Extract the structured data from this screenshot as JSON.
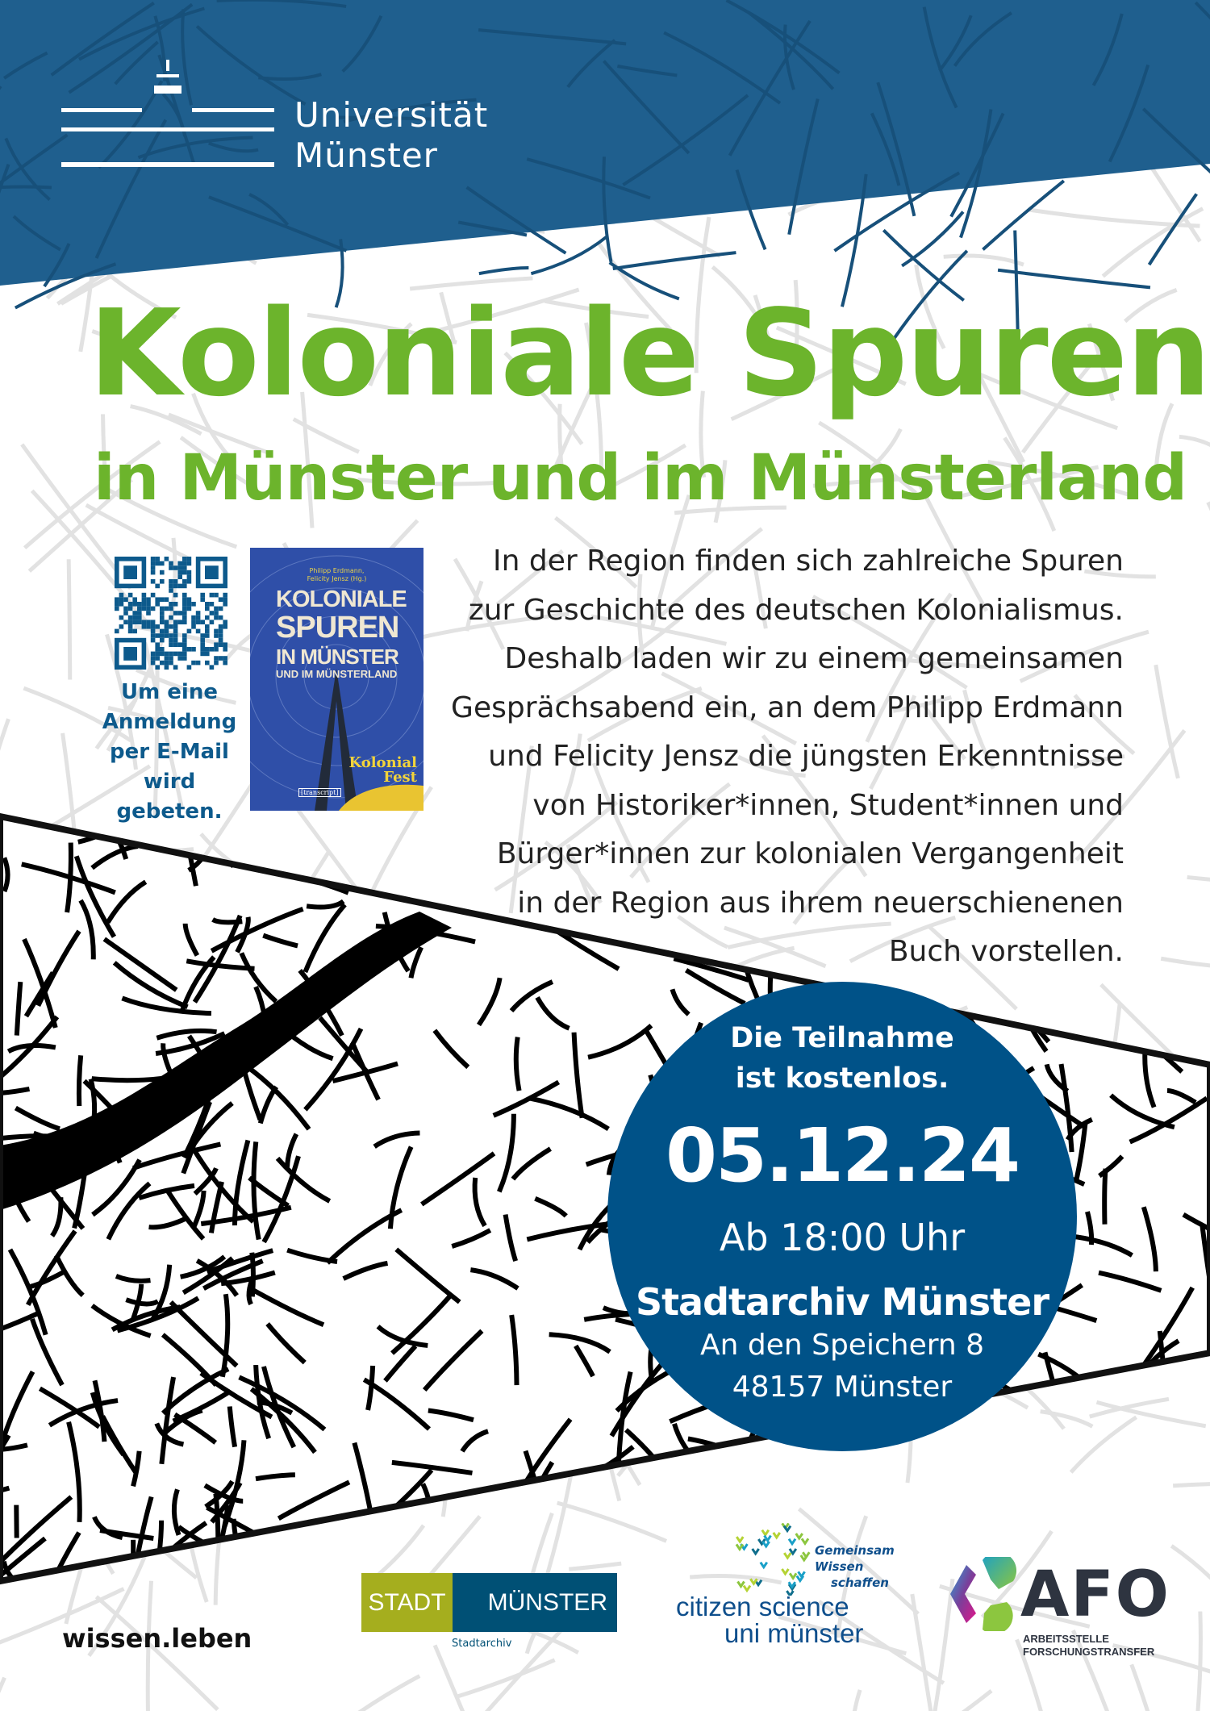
{
  "colors": {
    "header_blue": "#1f5f8e",
    "circle_blue": "#005288",
    "title_green": "#6cb42c",
    "text_dark": "#222222"
  },
  "header": {
    "university_line1": "Universität",
    "university_line2": "Münster",
    "logo_icon": "university-logo-icon"
  },
  "title": "Koloniale Spuren",
  "subtitle": "in Münster und im Münsterland",
  "registration": {
    "qr_icon": "qr-code-icon",
    "text": "Um eine Anmeldung per E-Mail wird gebeten."
  },
  "book": {
    "authors_line1": "Philipp Erdmann,",
    "authors_line2": "Felicity Jensz (Hg.)",
    "title_line1": "KOLONIALE",
    "title_line2": "SPUREN",
    "title_line3": "IN MÜNSTER",
    "title_line4": "UND IM MÜNSTERLAND",
    "series_line1": "Kolonial",
    "series_line2": "Fest",
    "publisher": "[transcript]"
  },
  "description_lines": [
    "In der Region finden sich zahlreiche Spuren",
    "zur Geschichte des deutschen Kolonialismus.",
    "Deshalb laden wir zu einem gemeinsamen",
    "Gesprächsabend ein, an dem Philipp Erdmann",
    "und Felicity Jensz die jüngsten Erkenntnisse",
    "von Historiker*innen, Student*innen und",
    "Bürger*innen zur kolonialen Vergangenheit",
    "in der Region aus ihrem neuerschienenen",
    "Buch vorstellen."
  ],
  "event": {
    "free_line1": "Die Teilnahme",
    "free_line2": "ist kostenlos.",
    "date": "05.12.24",
    "time": "Ab 18:00 Uhr",
    "venue": "Stadtarchiv Münster",
    "street": "An den Speichern 8",
    "city": "48157 Münster"
  },
  "footer": {
    "slogan": "wissen.leben",
    "stadt_logo": {
      "left": "STADT",
      "right": "MÜNSTER",
      "sub": "Stadtarchiv"
    },
    "citizen_science": {
      "line1": "citizen science",
      "line2": "uni münster",
      "tag1": "Gemeinsam",
      "tag2": "Wissen",
      "tag3": "schaffen"
    },
    "afo": {
      "name": "AFO",
      "sub1": "ARBEITSSTELLE",
      "sub2": "FORSCHUNGSTRANSFER"
    }
  }
}
